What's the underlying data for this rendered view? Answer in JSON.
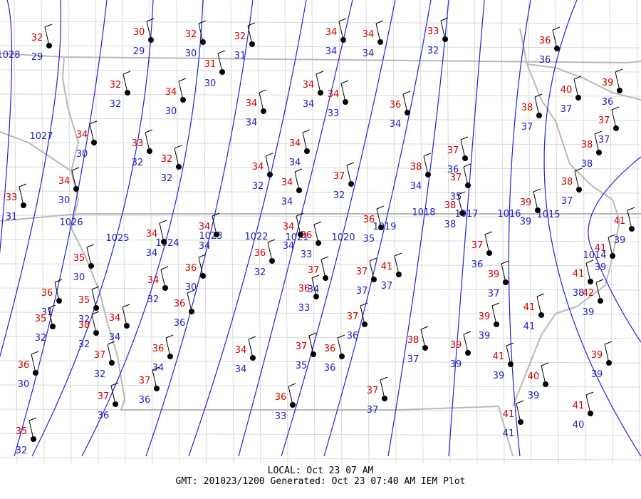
{
  "map": {
    "stations": [
      {
        "temp": 32,
        "dew": 29
      },
      {
        "temp": 30,
        "dew": 29
      },
      {
        "temp": 32,
        "dew": 30
      },
      {
        "temp": 32,
        "dew": 31
      },
      {
        "temp": 34,
        "dew": 34
      },
      {
        "temp": 34,
        "dew": 34
      },
      {
        "temp": 33,
        "dew": 32
      },
      {
        "temp": 36,
        "dew": 36
      },
      {
        "temp": 31,
        "dew": 30
      },
      {
        "temp": 32,
        "dew": 32
      },
      {
        "temp": 34,
        "dew": 30
      },
      {
        "temp": 34,
        "dew": 34
      },
      {
        "temp": 34,
        "dew": 33
      },
      {
        "temp": 34,
        "dew": 34
      },
      {
        "temp": 36,
        "dew": 34
      },
      {
        "temp": 40,
        "dew": 37
      },
      {
        "temp": 39,
        "dew": 36
      },
      {
        "temp": 38,
        "dew": 37
      },
      {
        "temp": 37,
        "dew": 37
      },
      {
        "temp": 38,
        "dew": 38
      },
      {
        "temp": 34,
        "dew": 30
      },
      {
        "temp": 33,
        "dew": 32
      },
      {
        "temp": 32,
        "dew": 32
      },
      {
        "temp": 34,
        "dew": 34
      },
      {
        "temp": 34,
        "dew": 32
      },
      {
        "temp": 34,
        "dew": 34
      },
      {
        "temp": 37,
        "dew": 32
      },
      {
        "temp": 38,
        "dew": 34
      },
      {
        "temp": 37,
        "dew": 36
      },
      {
        "temp": 37,
        "dew": 35
      },
      {
        "temp": 38,
        "dew": 38
      },
      {
        "temp": 38,
        "dew": 37
      },
      {
        "temp": 39,
        "dew": 39
      },
      {
        "temp": 33,
        "dew": 31
      },
      {
        "temp": 34,
        "dew": 30
      },
      {
        "temp": 34,
        "dew": 34
      },
      {
        "temp": 34,
        "dew": 34
      },
      {
        "temp": 34,
        "dew": 34
      },
      {
        "temp": 36,
        "dew": 33
      },
      {
        "temp": 36,
        "dew": 35
      },
      {
        "temp": 36,
        "dew": 32
      },
      {
        "temp": 35,
        "dew": 30
      },
      {
        "temp": 37,
        "dew": 36
      },
      {
        "temp": 39,
        "dew": 37
      },
      {
        "temp": 41,
        "dew": 38
      },
      {
        "temp": 41,
        "dew": 39
      },
      {
        "temp": 42,
        "dew": 39
      },
      {
        "temp": 41,
        "dew": 39
      },
      {
        "temp": 34,
        "dew": 32
      },
      {
        "temp": 36,
        "dew": 30
      },
      {
        "temp": 37,
        "dew": 34
      },
      {
        "temp": 36,
        "dew": 33
      },
      {
        "temp": 37,
        "dew": 37
      },
      {
        "temp": 41,
        "dew": 37
      },
      {
        "temp": 36,
        "dew": 31
      },
      {
        "temp": 35,
        "dew": 32
      },
      {
        "temp": 35,
        "dew": 32
      },
      {
        "temp": 38,
        "dew": 32
      },
      {
        "temp": 34,
        "dew": 34
      },
      {
        "temp": 36,
        "dew": 36
      },
      {
        "temp": 41,
        "dew": 41
      },
      {
        "temp": 39,
        "dew": 39
      },
      {
        "temp": 37,
        "dew": 36
      },
      {
        "temp": 37,
        "dew": 32
      },
      {
        "temp": 36,
        "dew": 34
      },
      {
        "temp": 34,
        "dew": 34
      },
      {
        "temp": 37,
        "dew": 35
      },
      {
        "temp": 36,
        "dew": 36
      },
      {
        "temp": 38,
        "dew": 37
      },
      {
        "temp": 39,
        "dew": 39
      },
      {
        "temp": 41,
        "dew": 39
      },
      {
        "temp": 40,
        "dew": 39
      },
      {
        "temp": 39,
        "dew": 39
      },
      {
        "temp": 36,
        "dew": 30
      },
      {
        "temp": 37,
        "dew": 36
      },
      {
        "temp": 37,
        "dew": 36
      },
      {
        "temp": 36,
        "dew": 33
      },
      {
        "temp": 37,
        "dew": 37
      },
      {
        "temp": 41,
        "dew": 41
      },
      {
        "temp": 41,
        "dew": 40
      },
      {
        "temp": 35,
        "dew": 32
      }
    ],
    "isobars": [
      1028,
      1027,
      1026,
      1025,
      1024,
      1023,
      1022,
      1021,
      1020,
      1019,
      1018,
      1017,
      1016,
      1015,
      1014
    ],
    "footer": {
      "local": "LOCAL: Oct 23 07 AM",
      "gmt": "GMT: 201023/1200 Generated: Oct 23 07:40 AM IEM Plot"
    }
  }
}
